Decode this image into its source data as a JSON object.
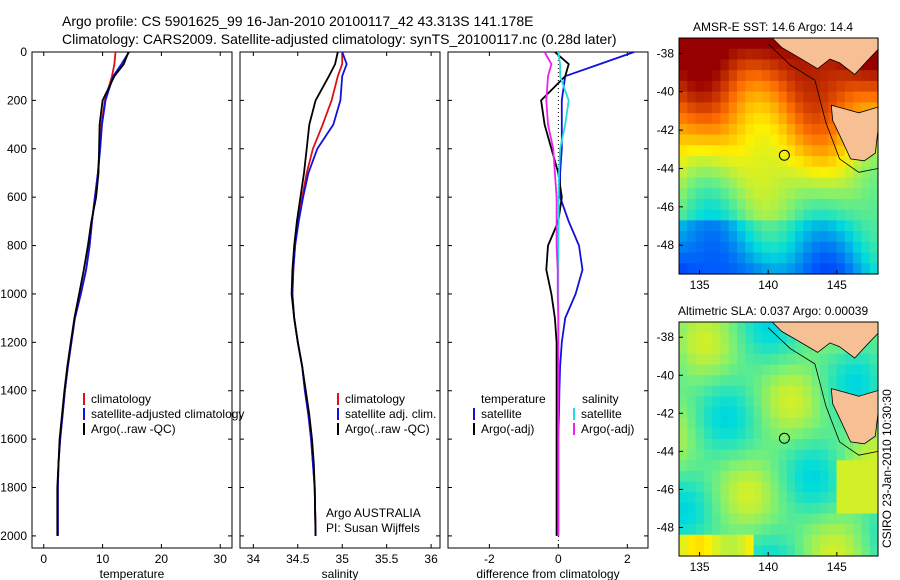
{
  "title_line1": "Argo profile: CS 5901625_99 16-Jan-2010 20100117_42 43.313S 141.178E",
  "title_line2": "Climatology: CARS2009. Satellite-adjusted climatology: synTS_20100117.nc (0.28d later)",
  "side_credit": "CSIRO 23-Jan-2010 10:30:30",
  "owner_line1": "Argo AUSTRALIA",
  "owner_line2": "PI: Susan Wijffels",
  "colors": {
    "climatology": "#dd1111",
    "satellite": "#1010e0",
    "argo": "#000000",
    "salinity_sat": "#22dddd",
    "salinity_argo": "#ee22ee",
    "land": "#f6bf94"
  },
  "depth_ticks": [
    "0",
    "200",
    "400",
    "600",
    "800",
    "1000",
    "1200",
    "1400",
    "1600",
    "1800",
    "2000"
  ],
  "panels": {
    "temperature": {
      "xlabel": "temperature",
      "xticks": [
        "0",
        "10",
        "20",
        "30"
      ],
      "legend": [
        "climatology",
        "satellite-adjusted climatology",
        "Argo(..raw -QC)"
      ]
    },
    "salinity": {
      "xlabel": "salinity",
      "xticks": [
        "34",
        "34.5",
        "35",
        "35.5",
        "36"
      ],
      "legend": [
        "climatology",
        "satellite adj. clim.",
        "Argo(..raw -QC)"
      ]
    },
    "difference": {
      "xlabel": "difference from climatology",
      "xticks": [
        "-2",
        "0",
        "2"
      ],
      "legend_head_t": "temperature",
      "legend_head_s": "salinity",
      "legend_t": [
        "satellite",
        "Argo(-adj)"
      ],
      "legend_s": [
        "satellite",
        "Argo(-adj)"
      ]
    }
  },
  "maps": {
    "sst": {
      "title": "AMSR-E SST: 14.6 Argo: 14.4",
      "yticks": [
        "-38",
        "-40",
        "-42",
        "-44",
        "-46",
        "-48"
      ],
      "xticks": [
        "135",
        "140",
        "145"
      ]
    },
    "sla": {
      "title": "Altimetric SLA: 0.037 Argo: 0.00039",
      "yticks": [
        "-38",
        "-40",
        "-42",
        "-44",
        "-46",
        "-48"
      ],
      "xticks": [
        "135",
        "140",
        "145"
      ]
    }
  },
  "chart_data": [
    {
      "type": "line",
      "name": "temperature profile",
      "xlabel": "temperature",
      "ylabel": "",
      "xlim": [
        -2,
        32
      ],
      "ylim": [
        2050,
        0
      ],
      "series": [
        {
          "name": "climatology",
          "color": "#dd1111",
          "x": [
            12.2,
            12.0,
            11.6,
            10.4,
            9.8,
            9.5,
            9.2,
            8.7,
            8.2,
            7.8,
            7.2,
            6.3,
            5.3,
            4.7,
            4.1,
            3.6,
            3.2,
            2.8,
            2.5,
            2.4,
            2.4
          ],
          "y": [
            0,
            50,
            100,
            200,
            300,
            400,
            500,
            600,
            700,
            800,
            900,
            1000,
            1100,
            1200,
            1300,
            1400,
            1500,
            1600,
            1700,
            1800,
            2000
          ]
        },
        {
          "name": "satellite-adjusted climatology",
          "color": "#1010e0",
          "x": [
            14.5,
            13.2,
            11.8,
            10.5,
            9.9,
            9.6,
            9.2,
            8.7,
            8.2,
            7.8,
            7.2,
            6.3,
            5.3,
            4.7,
            4.1,
            3.6,
            3.2,
            2.8,
            2.5,
            2.4,
            2.4
          ],
          "y": [
            0,
            50,
            100,
            200,
            300,
            400,
            500,
            600,
            700,
            800,
            900,
            1000,
            1100,
            1200,
            1300,
            1400,
            1500,
            1600,
            1700,
            1800,
            2000
          ]
        },
        {
          "name": "Argo(..raw -QC)",
          "color": "#000000",
          "x": [
            14.4,
            13.6,
            12.0,
            10.0,
            9.5,
            9.4,
            9.3,
            8.9,
            8.1,
            7.5,
            6.8,
            6.0,
            5.2,
            4.6,
            4.0,
            3.5,
            3.1,
            2.7,
            2.5,
            2.3,
            2.3
          ],
          "y": [
            0,
            50,
            100,
            200,
            300,
            400,
            500,
            600,
            700,
            800,
            900,
            1000,
            1100,
            1200,
            1300,
            1400,
            1500,
            1600,
            1700,
            1800,
            2000
          ]
        }
      ]
    },
    {
      "type": "line",
      "name": "salinity profile",
      "xlabel": "salinity",
      "ylabel": "",
      "xlim": [
        33.85,
        36.1
      ],
      "ylim": [
        2050,
        0
      ],
      "series": [
        {
          "name": "climatology",
          "color": "#dd1111",
          "x": [
            35.0,
            35.0,
            34.95,
            34.88,
            34.78,
            34.67,
            34.6,
            34.55,
            34.5,
            34.47,
            34.45,
            34.44,
            34.46,
            34.5,
            34.55,
            34.58,
            34.62,
            34.65,
            34.67,
            34.69,
            34.7
          ],
          "y": [
            0,
            50,
            100,
            200,
            300,
            400,
            500,
            600,
            700,
            800,
            900,
            1000,
            1100,
            1200,
            1300,
            1400,
            1500,
            1600,
            1700,
            1800,
            2000
          ]
        },
        {
          "name": "satellite adj. clim.",
          "color": "#1010e0",
          "x": [
            35.0,
            35.05,
            35.0,
            34.98,
            34.9,
            34.72,
            34.62,
            34.56,
            34.51,
            34.47,
            34.45,
            34.44,
            34.46,
            34.5,
            34.55,
            34.58,
            34.62,
            34.65,
            34.67,
            34.69,
            34.7
          ],
          "y": [
            0,
            50,
            100,
            200,
            300,
            400,
            500,
            600,
            700,
            800,
            900,
            1000,
            1100,
            1200,
            1300,
            1400,
            1500,
            1600,
            1700,
            1800,
            2000
          ]
        },
        {
          "name": "Argo(..raw -QC)",
          "color": "#000000",
          "x": [
            34.95,
            34.92,
            34.85,
            34.7,
            34.63,
            34.6,
            34.57,
            34.53,
            34.49,
            34.46,
            34.44,
            34.43,
            34.46,
            34.5,
            34.55,
            34.59,
            34.63,
            34.66,
            34.68,
            34.69,
            34.7
          ],
          "y": [
            0,
            50,
            100,
            200,
            300,
            400,
            500,
            600,
            700,
            800,
            900,
            1000,
            1100,
            1200,
            1300,
            1400,
            1500,
            1600,
            1700,
            1800,
            2000
          ]
        }
      ]
    },
    {
      "type": "line",
      "name": "difference from climatology",
      "xlabel": "difference from climatology",
      "ylabel": "",
      "xlim": [
        -3.2,
        2.6
      ],
      "ylim": [
        2050,
        0
      ],
      "series": [
        {
          "name": "temperature satellite",
          "color": "#1010e0",
          "x": [
            2.2,
            1.2,
            0.2,
            0.1,
            0.1,
            0.1,
            0.05,
            0.05,
            0.3,
            0.6,
            0.7,
            0.5,
            0.2,
            0.1,
            0.05,
            0.03,
            0.02,
            0.0,
            0.0,
            0.0,
            0.0
          ],
          "y": [
            0,
            50,
            100,
            200,
            300,
            400,
            500,
            600,
            700,
            800,
            900,
            1000,
            1100,
            1200,
            1300,
            1400,
            1500,
            1600,
            1700,
            1800,
            2000
          ]
        },
        {
          "name": "temperature Argo(-adj)",
          "color": "#000000",
          "x": [
            -0.1,
            0.3,
            0.2,
            -0.5,
            -0.4,
            -0.2,
            0.0,
            0.1,
            0.0,
            -0.3,
            -0.35,
            -0.2,
            -0.1,
            -0.05,
            -0.05,
            -0.05,
            -0.05,
            -0.05,
            -0.05,
            -0.05,
            -0.05
          ],
          "y": [
            0,
            50,
            100,
            200,
            300,
            400,
            500,
            600,
            700,
            800,
            900,
            1000,
            1100,
            1200,
            1300,
            1400,
            1500,
            1600,
            1700,
            1800,
            2000
          ]
        },
        {
          "name": "salinity satellite",
          "color": "#22dddd",
          "x": [
            0.0,
            0.05,
            0.05,
            0.3,
            0.2,
            0.05,
            0.02,
            0.01,
            0.01,
            0.0,
            0.0,
            0.0,
            0.0,
            0.0,
            0.0,
            0.0,
            0.0,
            0.0,
            0.0,
            0.0,
            0.0
          ],
          "y": [
            0,
            50,
            100,
            200,
            300,
            400,
            500,
            600,
            700,
            800,
            900,
            1000,
            1100,
            1200,
            1300,
            1400,
            1500,
            1600,
            1700,
            1800,
            2000
          ]
        },
        {
          "name": "salinity Argo(-adj)",
          "color": "#ee22ee",
          "x": [
            -0.4,
            -0.2,
            -0.3,
            -0.35,
            -0.3,
            -0.15,
            -0.1,
            -0.05,
            -0.05,
            -0.05,
            -0.02,
            -0.02,
            0.0,
            0.0,
            0.0,
            0.0,
            0.0,
            0.0,
            0.0,
            0.0,
            0.0
          ],
          "y": [
            0,
            50,
            100,
            200,
            300,
            400,
            500,
            600,
            700,
            800,
            900,
            1000,
            1100,
            1200,
            1300,
            1400,
            1500,
            1600,
            1700,
            1800,
            2000
          ]
        }
      ]
    }
  ]
}
